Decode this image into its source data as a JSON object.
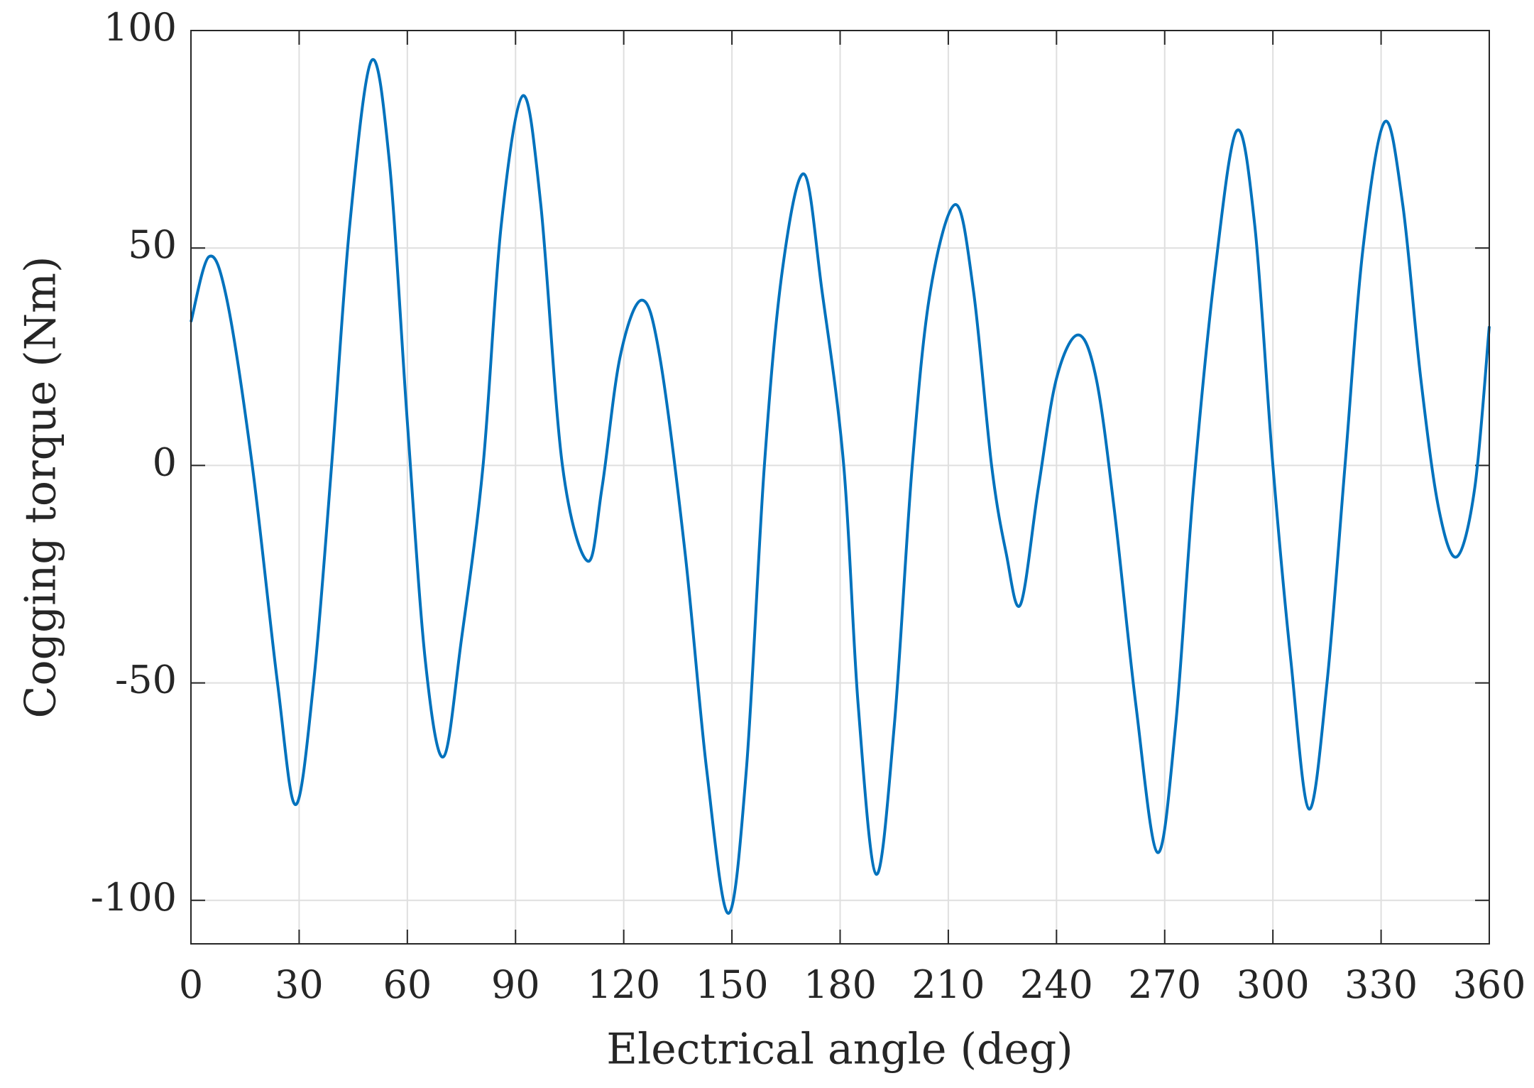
{
  "chart_data": {
    "type": "line",
    "xlabel": "Electrical angle (deg)",
    "ylabel": "Cogging torque (Nm)",
    "xlim": [
      0,
      360
    ],
    "ylim": [
      -110,
      100
    ],
    "xticks": [
      0,
      30,
      60,
      90,
      120,
      150,
      180,
      210,
      240,
      270,
      300,
      330,
      360
    ],
    "yticks": [
      -100,
      -50,
      0,
      50,
      100
    ],
    "grid": true,
    "x": [
      0,
      5,
      10,
      17,
      24,
      29,
      34,
      39,
      44,
      50,
      55,
      60,
      65,
      70,
      75,
      81,
      86,
      92,
      97,
      103,
      110,
      114,
      119,
      125,
      130,
      137,
      143,
      149,
      154,
      159,
      164,
      170,
      175,
      181,
      185,
      190,
      195,
      200,
      205,
      212,
      217,
      222,
      226,
      230,
      235,
      240,
      246,
      251,
      256,
      262,
      268,
      273,
      278,
      284,
      290,
      295,
      300,
      305,
      310,
      315,
      320,
      325,
      331,
      336,
      341,
      346,
      351,
      356,
      360
    ],
    "series": [
      {
        "name": "Cogging torque",
        "color": "#0072bd",
        "values": [
          33,
          48,
          38,
          0,
          -50,
          -78,
          -50,
          0,
          55,
          93,
          70,
          10,
          -45,
          -67,
          -40,
          0,
          55,
          85,
          60,
          0,
          -22,
          -5,
          25,
          38,
          25,
          -20,
          -70,
          -103,
          -70,
          0,
          45,
          67,
          40,
          0,
          -55,
          -94,
          -60,
          0,
          40,
          60,
          40,
          0,
          -20,
          -32,
          -5,
          20,
          30,
          20,
          -10,
          -55,
          -89,
          -60,
          -5,
          45,
          77,
          55,
          0,
          -45,
          -79,
          -50,
          0,
          50,
          79,
          60,
          20,
          -10,
          -21,
          -5,
          32
        ]
      }
    ]
  }
}
